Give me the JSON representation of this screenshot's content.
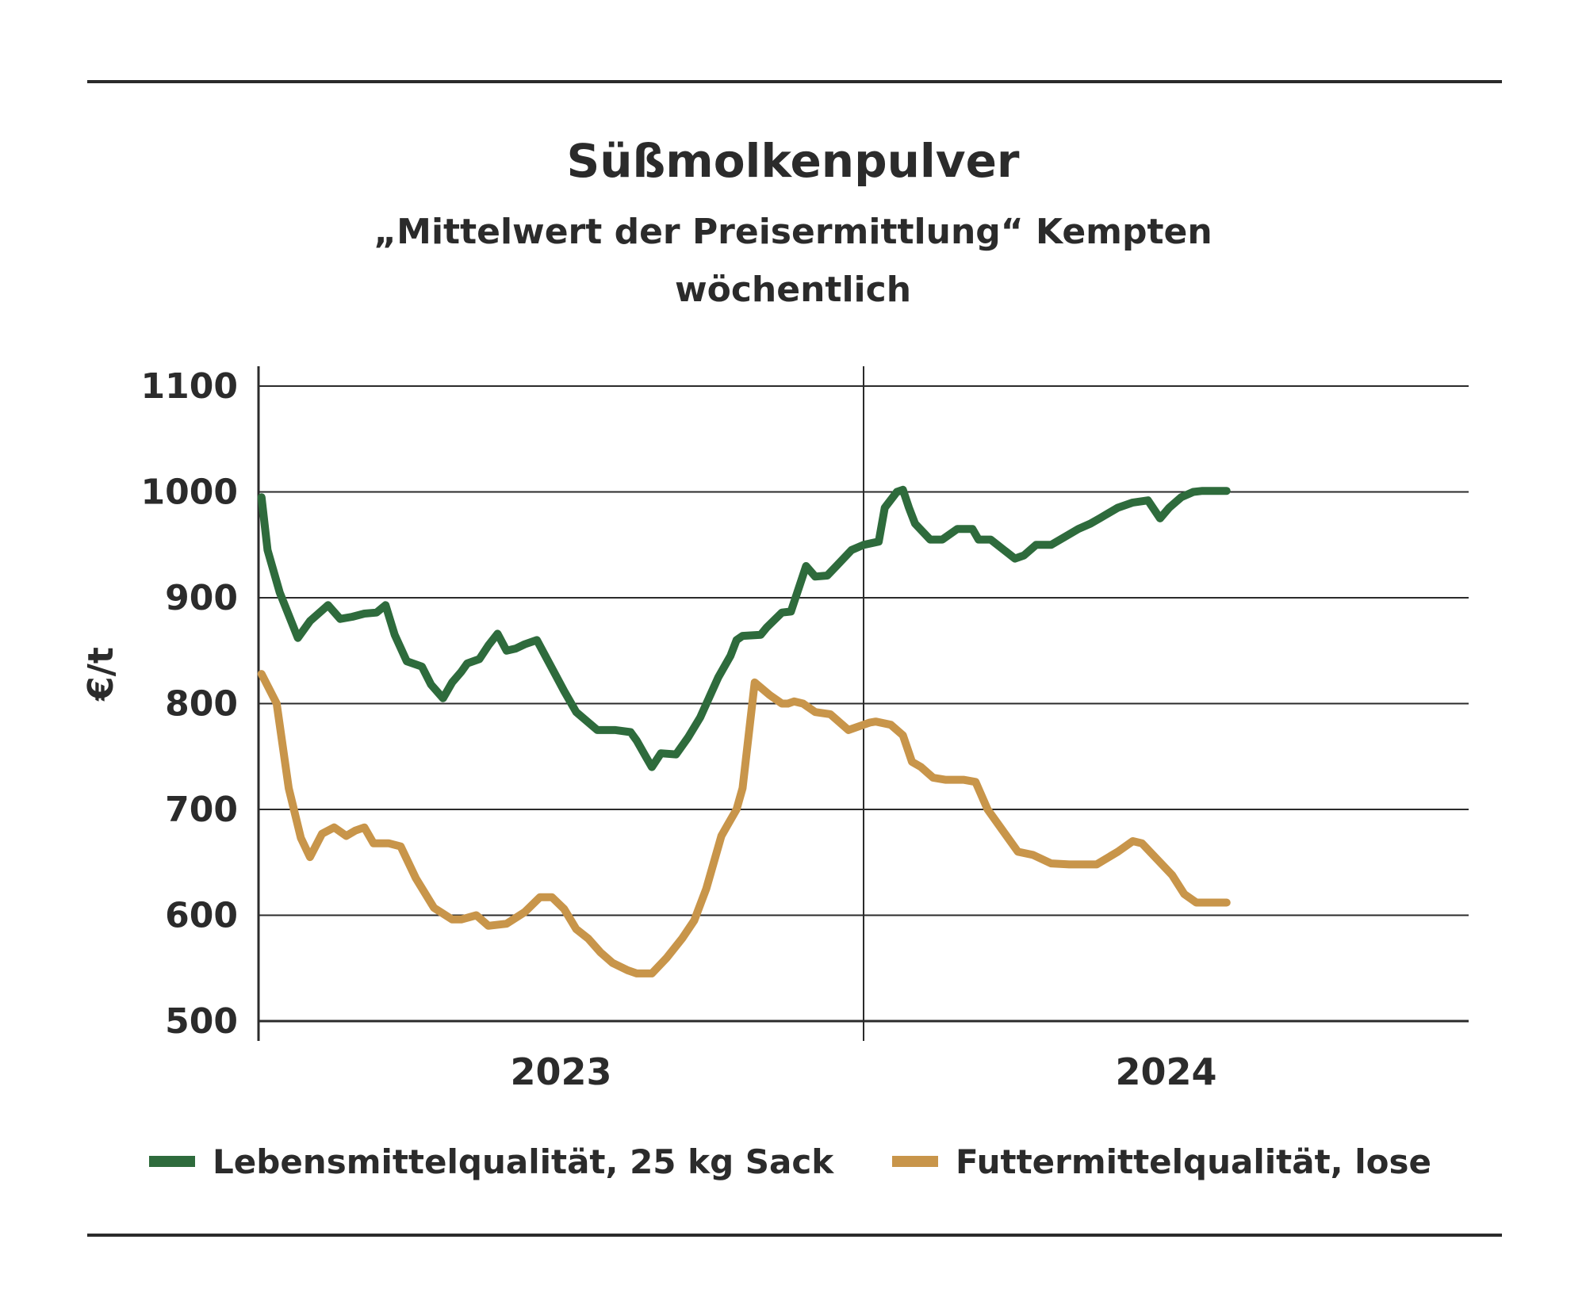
{
  "chart_data": {
    "type": "line",
    "title": "Süßmolkenpulver",
    "subtitle_lines": [
      "„Mittelwert der Preisermittlung“ Kempten",
      "wöchentlich"
    ],
    "ylabel": "€/t",
    "ylim": [
      500,
      1100
    ],
    "yticks": [
      "1100",
      "1000",
      "900",
      "800",
      "700",
      "600",
      "500"
    ],
    "x_domain_years": [
      2023.0,
      2025.0
    ],
    "x_tick_labels": [
      {
        "label": "2023",
        "x": 2023.5
      },
      {
        "label": "2024",
        "x": 2024.5
      }
    ],
    "year_boundaries": [
      2023.0,
      2024.0
    ],
    "grid": true,
    "legend_position": "bottom",
    "colors": {
      "food": "#2e6b3c",
      "feed": "#c8954a",
      "axis": "#2b2b2b"
    },
    "series": [
      {
        "name": "Lebensmittelqualität, 25 kg Sack",
        "color": "#2e6b3c",
        "x": [
          2023.005,
          2023.015,
          2023.035,
          2023.065,
          2023.085,
          2023.115,
          2023.135,
          2023.155,
          2023.175,
          2023.195,
          2023.21,
          2023.225,
          2023.245,
          2023.27,
          2023.285,
          2023.305,
          2023.32,
          2023.335,
          2023.345,
          2023.365,
          2023.38,
          2023.395,
          2023.41,
          2023.425,
          2023.44,
          2023.46,
          2023.49,
          2023.505,
          2023.525,
          2023.56,
          2023.59,
          2023.615,
          2023.625,
          2023.64,
          2023.65,
          2023.665,
          2023.69,
          2023.71,
          2023.73,
          2023.76,
          2023.78,
          2023.79,
          2023.8,
          2023.83,
          2023.84,
          2023.865,
          2023.88,
          2023.905,
          2023.92,
          2023.94,
          2023.955,
          2023.98,
          2024.0,
          2024.025,
          2024.035,
          2024.055,
          2024.065,
          2024.075,
          2024.085,
          2024.11,
          2024.13,
          2024.155,
          2024.18,
          2024.19,
          2024.21,
          2024.25,
          2024.265,
          2024.285,
          2024.31,
          2024.34,
          2024.355,
          2024.375,
          2024.39,
          2024.42,
          2024.445,
          2024.47,
          2024.49,
          2024.505,
          2024.525,
          2024.545,
          2024.56,
          2024.58,
          2024.6
        ],
        "values": [
          995,
          945,
          905,
          862,
          878,
          893,
          880,
          882,
          885,
          886,
          893,
          865,
          840,
          835,
          818,
          805,
          820,
          830,
          838,
          842,
          855,
          866,
          850,
          852,
          856,
          860,
          828,
          812,
          792,
          775,
          775,
          773,
          765,
          750,
          740,
          753,
          752,
          768,
          787,
          825,
          845,
          860,
          864,
          865,
          872,
          886,
          887,
          930,
          920,
          921,
          930,
          945,
          950,
          953,
          985,
          1000,
          1002,
          985,
          970,
          955,
          955,
          965,
          965,
          955,
          955,
          937,
          940,
          950,
          950,
          960,
          965,
          970,
          975,
          985,
          990,
          992,
          975,
          985,
          995,
          1000,
          1001,
          1001,
          1001
        ]
      },
      {
        "name": "Futtermittelqualität, lose",
        "color": "#c8954a",
        "x": [
          2023.005,
          2023.03,
          2023.05,
          2023.07,
          2023.085,
          2023.105,
          2023.125,
          2023.145,
          2023.16,
          2023.175,
          2023.19,
          2023.215,
          2023.235,
          2023.26,
          2023.29,
          2023.32,
          2023.335,
          2023.36,
          2023.38,
          2023.41,
          2023.44,
          2023.465,
          2023.485,
          2023.505,
          2023.525,
          2023.545,
          2023.565,
          2023.585,
          2023.61,
          2023.625,
          2023.65,
          2023.675,
          2023.7,
          2023.72,
          2023.74,
          2023.765,
          2023.775,
          2023.79,
          2023.8,
          2023.82,
          2023.845,
          2023.865,
          2023.875,
          2023.885,
          2023.9,
          2023.92,
          2023.945,
          2023.975,
          2024.0,
          2024.01,
          2024.02,
          2024.045,
          2024.065,
          2024.08,
          2024.095,
          2024.115,
          2024.135,
          2024.15,
          2024.165,
          2024.185,
          2024.205,
          2024.23,
          2024.255,
          2024.28,
          2024.31,
          2024.34,
          2024.365,
          2024.385,
          2024.42,
          2024.445,
          2024.46,
          2024.49,
          2024.51,
          2024.53,
          2024.55,
          2024.6
        ],
        "values": [
          828,
          800,
          720,
          673,
          655,
          677,
          683,
          675,
          680,
          683,
          668,
          668,
          665,
          635,
          607,
          596,
          596,
          600,
          590,
          592,
          603,
          617,
          617,
          606,
          587,
          578,
          565,
          555,
          548,
          545,
          545,
          560,
          578,
          595,
          625,
          675,
          685,
          700,
          720,
          820,
          808,
          800,
          800,
          802,
          800,
          792,
          790,
          775,
          780,
          782,
          783,
          780,
          770,
          745,
          740,
          730,
          728,
          728,
          728,
          726,
          700,
          680,
          660,
          657,
          649,
          648,
          648,
          648,
          660,
          670,
          668,
          650,
          638,
          620,
          612,
          612
        ]
      }
    ]
  }
}
